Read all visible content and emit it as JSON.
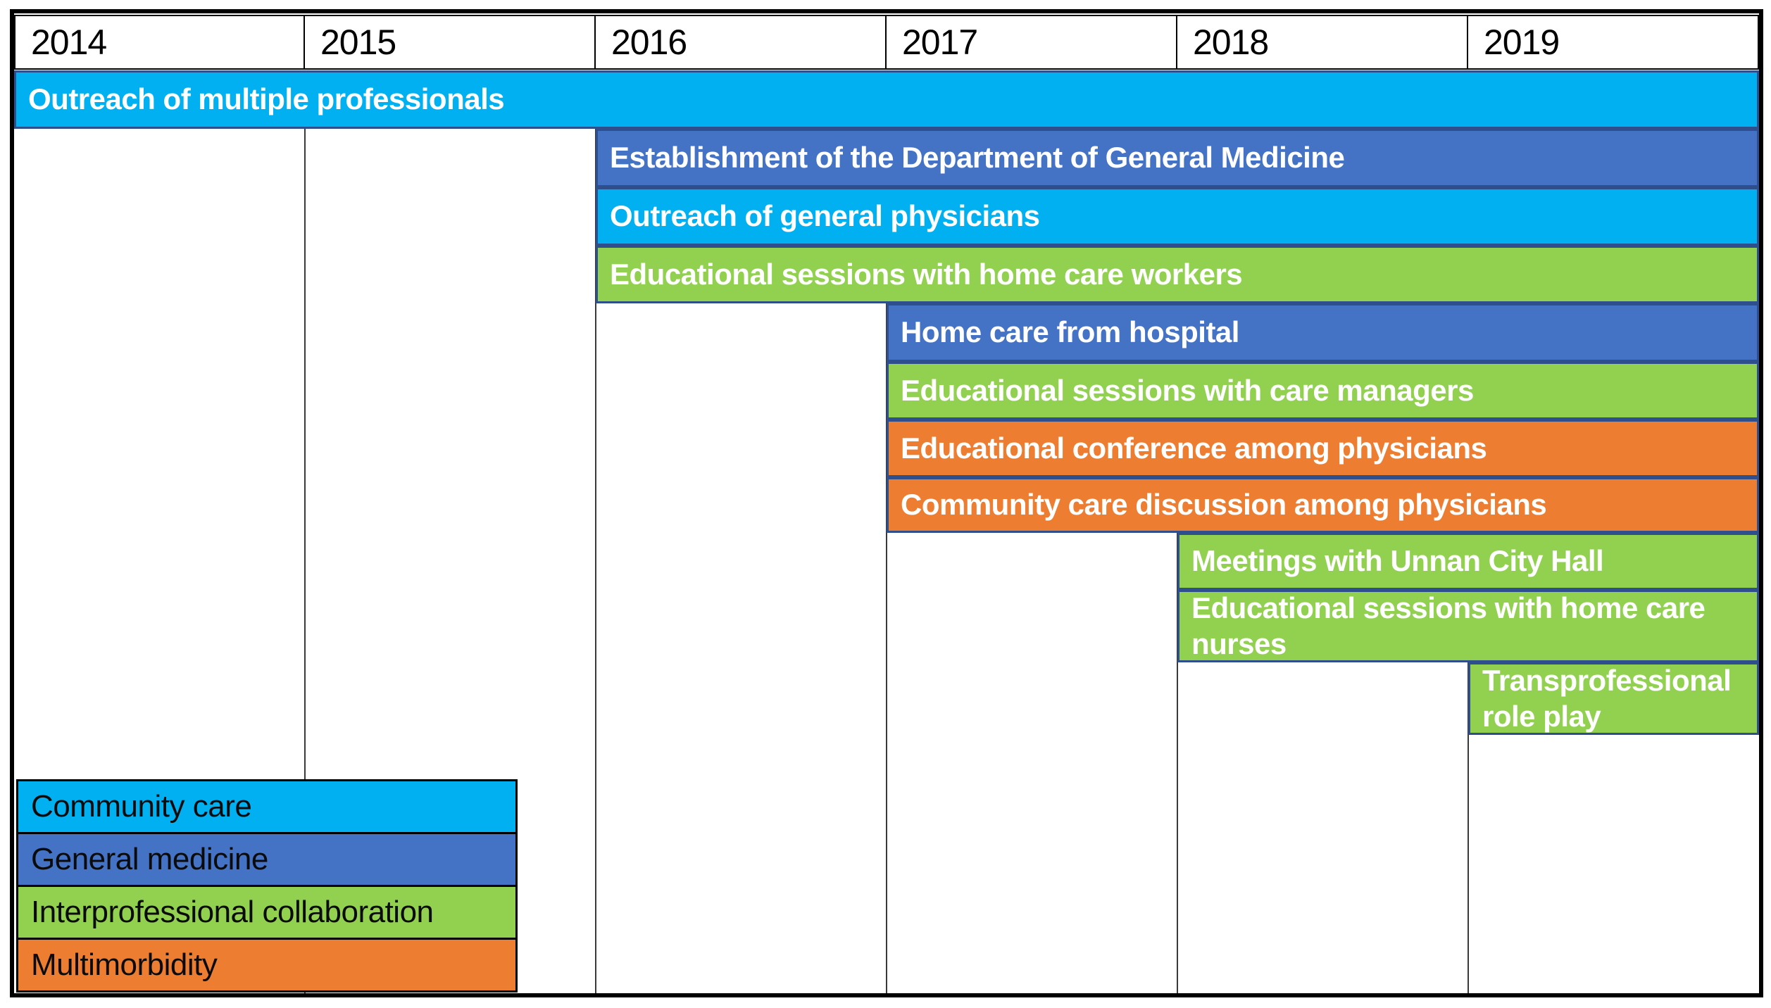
{
  "colors": {
    "community_care": "#00B0F0",
    "general_medicine": "#4472C4",
    "interprofessional_collaboration": "#92D050",
    "multimorbidity": "#ED7D31",
    "bar_border": "#2E4E8C",
    "grid_line": "#3A3A3A",
    "table_border": "#000000",
    "bar_text": "#FFFFFF",
    "header_text": "#000000"
  },
  "header": {
    "years": [
      "2014",
      "2015",
      "2016",
      "2017",
      "2018",
      "2019"
    ]
  },
  "legend": {
    "items": [
      {
        "label": "Community care",
        "category": "community_care"
      },
      {
        "label": "General medicine",
        "category": "general_medicine"
      },
      {
        "label": "Interprofessional collaboration",
        "category": "interprofessional_collaboration"
      },
      {
        "label": "Multimorbidity",
        "category": "multimorbidity"
      }
    ]
  },
  "chart_data": {
    "type": "gantt",
    "x_categories": [
      "2014",
      "2015",
      "2016",
      "2017",
      "2018",
      "2019"
    ],
    "legend_position": "bottom-left",
    "grid": "vertical-year-dividers",
    "bars": [
      {
        "label": "Outreach of multiple professionals",
        "category": "community_care",
        "start_year": "2014",
        "end_year": "2019"
      },
      {
        "label": "Establishment of the Department of General Medicine",
        "category": "general_medicine",
        "start_year": "2016",
        "end_year": "2019"
      },
      {
        "label": "Outreach of general physicians",
        "category": "community_care",
        "start_year": "2016",
        "end_year": "2019"
      },
      {
        "label": "Educational sessions with home care workers",
        "category": "interprofessional_collaboration",
        "start_year": "2016",
        "end_year": "2019"
      },
      {
        "label": "Home care from hospital",
        "category": "general_medicine",
        "start_year": "2017",
        "end_year": "2019"
      },
      {
        "label": "Educational sessions with care managers",
        "category": "interprofessional_collaboration",
        "start_year": "2017",
        "end_year": "2019"
      },
      {
        "label": "Educational conference among physicians",
        "category": "multimorbidity",
        "start_year": "2017",
        "end_year": "2019"
      },
      {
        "label": "Community care discussion among physicians",
        "category": "multimorbidity",
        "start_year": "2017",
        "end_year": "2019"
      },
      {
        "label": "Meetings with Unnan City Hall",
        "category": "interprofessional_collaboration",
        "start_year": "2018",
        "end_year": "2019"
      },
      {
        "label": "Educational sessions with home care nurses",
        "category": "interprofessional_collaboration",
        "start_year": "2018",
        "end_year": "2019"
      },
      {
        "label": "Transprofessional role play",
        "category": "interprofessional_collaboration",
        "start_year": "2019",
        "end_year": "2019"
      }
    ]
  }
}
